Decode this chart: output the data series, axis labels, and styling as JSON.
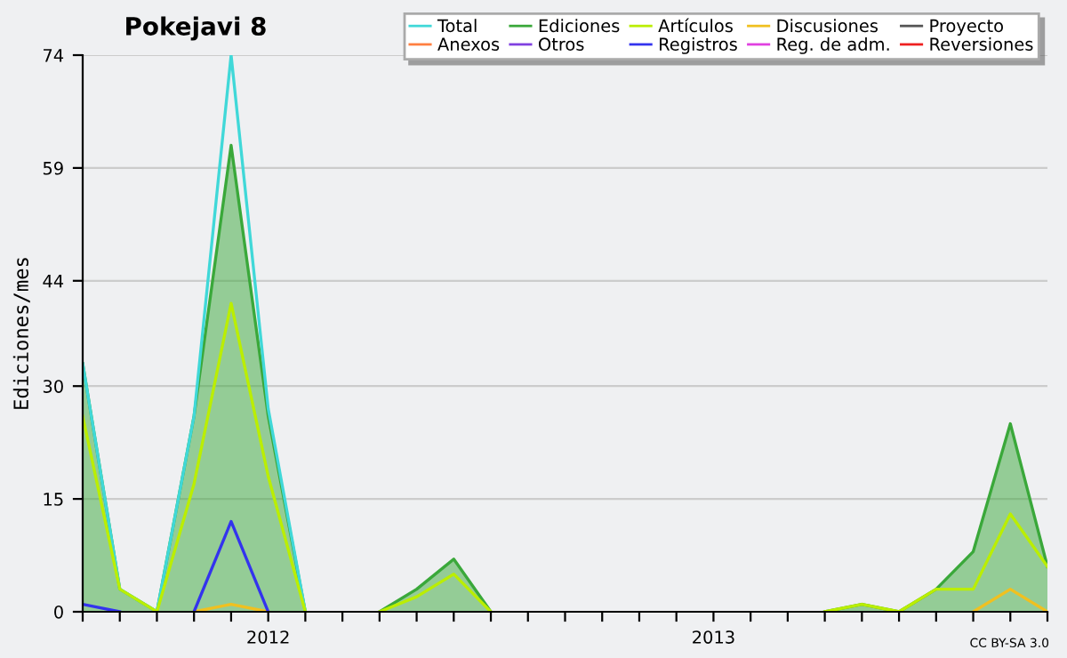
{
  "chart_data": {
    "type": "line",
    "title": "Pokejavi 8",
    "ylabel": "Ediciones/mes",
    "categories": [
      null,
      null,
      null,
      null,
      null,
      "2012",
      null,
      null,
      null,
      null,
      null,
      null,
      null,
      null,
      null,
      null,
      null,
      "2013",
      null,
      null,
      null,
      null,
      null,
      null,
      null,
      null,
      null
    ],
    "ylim": [
      0,
      74
    ],
    "yticks": [
      0,
      15,
      30,
      44,
      59,
      74
    ],
    "grid": "y",
    "legend": "top right",
    "marker": "none",
    "line_style": "solid",
    "annotations": [
      "CC BY-SA 3.0"
    ],
    "series": [
      {
        "name": "Total",
        "color": "#40d8d8",
        "values": [
          33,
          3,
          0,
          26,
          74,
          27,
          0,
          null,
          null,
          null,
          null,
          null,
          null,
          null,
          null,
          null,
          null,
          null,
          null,
          null,
          null,
          null,
          null,
          null,
          null,
          null,
          null
        ]
      },
      {
        "name": "Ediciones",
        "type": "area",
        "color": "#3aa83a",
        "values": [
          33,
          3,
          0,
          26,
          62,
          26,
          0,
          null,
          0,
          3,
          7,
          0,
          null,
          null,
          null,
          null,
          null,
          null,
          null,
          null,
          0,
          1,
          0,
          3,
          8,
          25,
          6
        ]
      },
      {
        "name": "Artículos",
        "color": "#bbee00",
        "values": [
          26,
          3,
          0,
          17,
          41,
          18,
          0,
          null,
          0,
          2,
          5,
          0,
          null,
          null,
          null,
          null,
          null,
          null,
          null,
          null,
          0,
          1,
          0,
          3,
          3,
          13,
          6
        ]
      },
      {
        "name": "Discusiones",
        "color": "#f0c020",
        "values": [
          null,
          null,
          null,
          0,
          1,
          0,
          null,
          null,
          null,
          null,
          null,
          null,
          null,
          null,
          null,
          null,
          null,
          null,
          null,
          null,
          null,
          null,
          null,
          null,
          0,
          3,
          0
        ]
      },
      {
        "name": "Proyecto",
        "color": "#555555",
        "values": [
          null,
          null,
          null,
          null,
          null,
          null,
          null,
          null,
          null,
          null,
          null,
          null,
          null,
          null,
          null,
          null,
          null,
          null,
          null,
          null,
          null,
          null,
          null,
          null,
          null,
          null,
          null
        ]
      },
      {
        "name": "Anexos",
        "color": "#ff7f40",
        "values": [
          null,
          null,
          null,
          null,
          null,
          null,
          null,
          null,
          null,
          null,
          null,
          null,
          null,
          null,
          null,
          null,
          null,
          null,
          null,
          null,
          null,
          null,
          null,
          null,
          null,
          null,
          null
        ]
      },
      {
        "name": "Otros",
        "color": "#8040e0",
        "values": [
          null,
          null,
          null,
          null,
          null,
          null,
          null,
          null,
          null,
          null,
          null,
          null,
          null,
          null,
          null,
          null,
          null,
          null,
          null,
          null,
          null,
          null,
          null,
          null,
          null,
          null,
          null
        ]
      },
      {
        "name": "Registros",
        "color": "#3333ee",
        "values": [
          1,
          0,
          null,
          0,
          12,
          0,
          null,
          null,
          null,
          null,
          null,
          null,
          null,
          null,
          null,
          null,
          null,
          null,
          null,
          null,
          null,
          null,
          null,
          null,
          null,
          null,
          null
        ]
      },
      {
        "name": "Reg. de adm.",
        "color": "#e040e0",
        "values": [
          null,
          null,
          null,
          null,
          null,
          null,
          null,
          null,
          null,
          null,
          null,
          null,
          null,
          null,
          null,
          null,
          null,
          null,
          null,
          null,
          null,
          null,
          null,
          null,
          null,
          null,
          null
        ]
      },
      {
        "name": "Reversiones",
        "color": "#ee2020",
        "values": [
          null,
          null,
          null,
          null,
          null,
          null,
          null,
          null,
          null,
          null,
          null,
          null,
          null,
          null,
          null,
          null,
          null,
          null,
          null,
          null,
          null,
          null,
          null,
          null,
          null,
          null,
          null
        ]
      }
    ]
  }
}
